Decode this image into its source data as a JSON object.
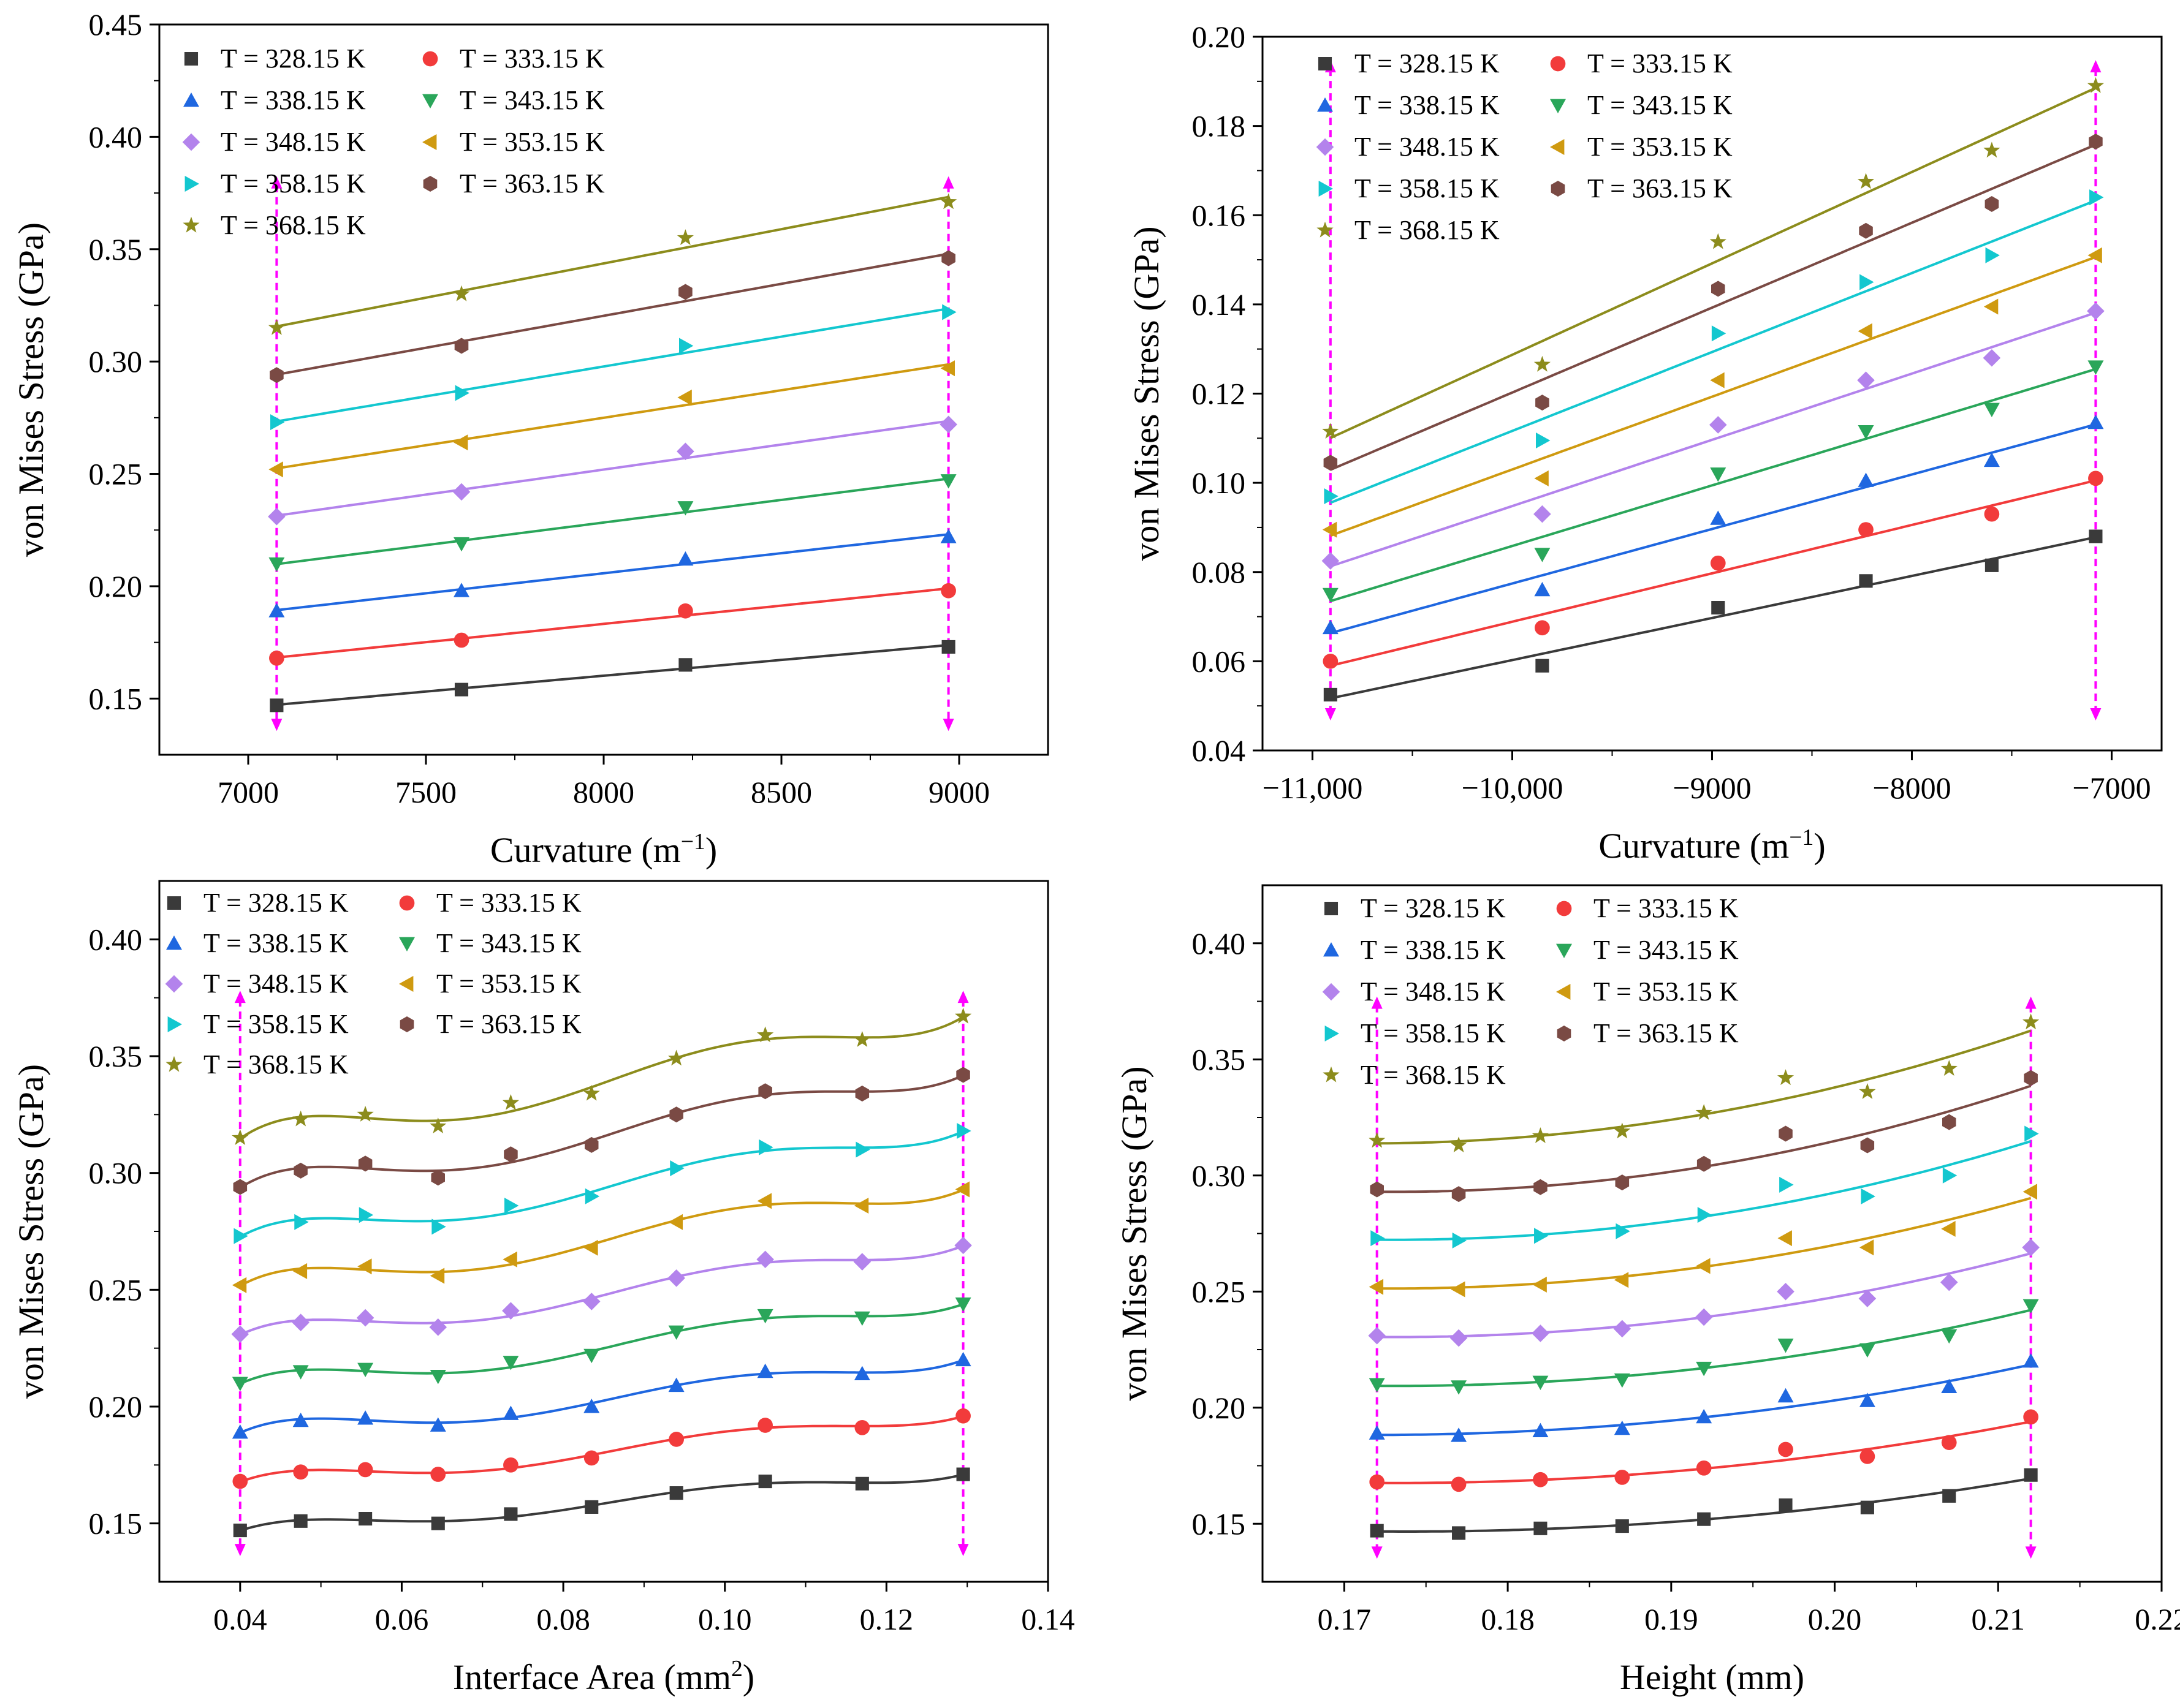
{
  "colors": {
    "328.15": "#3a3a3a",
    "333.15": "#f23b3b",
    "338.15": "#1f67e0",
    "343.15": "#2aa65a",
    "348.15": "#b383ec",
    "353.15": "#cf9a10",
    "358.15": "#13c7cf",
    "363.15": "#7a4a44",
    "368.15": "#8c8c1c",
    "bracket": "#ff00ff"
  },
  "chart_data": [
    {
      "type": "scatter",
      "fit": "linear",
      "xlabel": "Curvature (m",
      "xlabel_sup": "−1",
      "xlabel_tail": ")",
      "ylabel": "von Mises Stress (GPa)",
      "xlim": [
        6750,
        9250
      ],
      "ylim": [
        0.125,
        0.45
      ],
      "xticks": [
        7000,
        7500,
        8000,
        8500,
        9000
      ],
      "xtick_labels": [
        "7000",
        "7500",
        "8000",
        "8500",
        "9000"
      ],
      "yticks": [
        0.15,
        0.2,
        0.25,
        0.3,
        0.35,
        0.4,
        0.45
      ],
      "ytick_labels": [
        "0.15",
        "0.20",
        "0.25",
        "0.30",
        "0.35",
        "0.40",
        "0.45"
      ],
      "bracket_x": [
        7080,
        8970
      ],
      "x": [
        7080,
        7600,
        8230,
        8970
      ],
      "series": [
        {
          "name": "T = 328.15 K",
          "marker": "square",
          "values": [
            0.147,
            0.154,
            0.165,
            0.173
          ]
        },
        {
          "name": "T = 333.15 K",
          "marker": "circle",
          "values": [
            0.168,
            0.176,
            0.189,
            0.198
          ]
        },
        {
          "name": "T = 338.15 K",
          "marker": "triangle-up",
          "values": [
            0.189,
            0.198,
            0.212,
            0.222
          ]
        },
        {
          "name": "T = 343.15 K",
          "marker": "triangle-down",
          "values": [
            0.21,
            0.219,
            0.235,
            0.247
          ]
        },
        {
          "name": "T = 348.15 K",
          "marker": "diamond",
          "values": [
            0.231,
            0.242,
            0.26,
            0.272
          ]
        },
        {
          "name": "T = 353.15 K",
          "marker": "triangle-left",
          "values": [
            0.252,
            0.264,
            0.284,
            0.297
          ]
        },
        {
          "name": "T = 358.15 K",
          "marker": "triangle-right",
          "values": [
            0.273,
            0.286,
            0.307,
            0.322
          ]
        },
        {
          "name": "T = 363.15 K",
          "marker": "hexagon",
          "values": [
            0.294,
            0.307,
            0.331,
            0.346
          ]
        },
        {
          "name": "T = 368.15 K",
          "marker": "star",
          "values": [
            0.315,
            0.33,
            0.355,
            0.371
          ]
        }
      ]
    },
    {
      "type": "scatter",
      "fit": "linear",
      "xlabel": "Curvature (m",
      "xlabel_sup": "−1",
      "xlabel_tail": ")",
      "ylabel": "von Mises Stress (GPa)",
      "xlim": [
        -11250,
        -6750
      ],
      "ylim": [
        0.04,
        0.2
      ],
      "xticks": [
        -11000,
        -10000,
        -9000,
        -8000,
        -7000
      ],
      "xtick_labels": [
        "−11,000",
        "−10,000",
        "−9000",
        "−8000",
        "−7000"
      ],
      "yticks": [
        0.04,
        0.06,
        0.08,
        0.1,
        0.12,
        0.14,
        0.16,
        0.18,
        0.2
      ],
      "ytick_labels": [
        "0.04",
        "0.06",
        "0.08",
        "0.10",
        "0.12",
        "0.14",
        "0.16",
        "0.18",
        "0.20"
      ],
      "bracket_x": [
        -10910,
        -7080
      ],
      "x": [
        -10910,
        -9850,
        -8970,
        -8230,
        -7600,
        -7080
      ],
      "series": [
        {
          "name": "T = 328.15 K",
          "marker": "square",
          "values": [
            0.0525,
            0.059,
            0.072,
            0.078,
            0.0815,
            0.088
          ]
        },
        {
          "name": "T = 333.15 K",
          "marker": "circle",
          "values": [
            0.06,
            0.0675,
            0.082,
            0.0895,
            0.093,
            0.101
          ]
        },
        {
          "name": "T = 338.15 K",
          "marker": "triangle-up",
          "values": [
            0.0675,
            0.076,
            0.092,
            0.1005,
            0.105,
            0.1135
          ]
        },
        {
          "name": "T = 343.15 K",
          "marker": "triangle-down",
          "values": [
            0.075,
            0.084,
            0.102,
            0.1115,
            0.1165,
            0.126
          ]
        },
        {
          "name": "T = 348.15 K",
          "marker": "diamond",
          "values": [
            0.0825,
            0.093,
            0.113,
            0.123,
            0.128,
            0.1385
          ]
        },
        {
          "name": "T = 353.15 K",
          "marker": "triangle-left",
          "values": [
            0.0895,
            0.101,
            0.123,
            0.134,
            0.1395,
            0.151
          ]
        },
        {
          "name": "T = 358.15 K",
          "marker": "triangle-right",
          "values": [
            0.097,
            0.1095,
            0.1335,
            0.145,
            0.151,
            0.164
          ]
        },
        {
          "name": "T = 363.15 K",
          "marker": "hexagon",
          "values": [
            0.1045,
            0.118,
            0.1435,
            0.1565,
            0.1625,
            0.1765
          ]
        },
        {
          "name": "T = 368.15 K",
          "marker": "star",
          "values": [
            0.1115,
            0.1265,
            0.154,
            0.1675,
            0.1745,
            0.189
          ]
        }
      ]
    },
    {
      "type": "scatter",
      "fit": "smooth",
      "xlabel": "Interface Area (mm",
      "xlabel_sup": "2",
      "xlabel_tail": ")",
      "ylabel": "von Mises Stress (GPa)",
      "xlim": [
        0.03,
        0.14
      ],
      "ylim": [
        0.125,
        0.425
      ],
      "xticks": [
        0.04,
        0.06,
        0.08,
        0.1,
        0.12,
        0.14
      ],
      "xtick_labels": [
        "0.04",
        "0.06",
        "0.08",
        "0.10",
        "0.12",
        "0.14"
      ],
      "yticks": [
        0.15,
        0.2,
        0.25,
        0.3,
        0.35,
        0.4
      ],
      "ytick_labels": [
        "0.15",
        "0.20",
        "0.25",
        "0.30",
        "0.35",
        "0.40"
      ],
      "bracket_x": [
        0.04,
        0.1295
      ],
      "x": [
        0.04,
        0.0475,
        0.0555,
        0.0645,
        0.0735,
        0.0835,
        0.094,
        0.105,
        0.117,
        0.1295
      ],
      "series": [
        {
          "name": "T = 328.15 K",
          "marker": "square",
          "values": [
            0.147,
            0.151,
            0.152,
            0.15,
            0.154,
            0.157,
            0.163,
            0.168,
            0.167,
            0.171
          ]
        },
        {
          "name": "T = 333.15 K",
          "marker": "circle",
          "values": [
            0.168,
            0.172,
            0.173,
            0.171,
            0.175,
            0.178,
            0.186,
            0.192,
            0.191,
            0.196
          ]
        },
        {
          "name": "T = 338.15 K",
          "marker": "triangle-up",
          "values": [
            0.189,
            0.194,
            0.195,
            0.192,
            0.197,
            0.2,
            0.209,
            0.215,
            0.214,
            0.22
          ]
        },
        {
          "name": "T = 343.15 K",
          "marker": "triangle-down",
          "values": [
            0.21,
            0.215,
            0.216,
            0.213,
            0.219,
            0.222,
            0.232,
            0.239,
            0.238,
            0.244
          ]
        },
        {
          "name": "T = 348.15 K",
          "marker": "diamond",
          "values": [
            0.231,
            0.236,
            0.238,
            0.234,
            0.241,
            0.245,
            0.255,
            0.263,
            0.262,
            0.269
          ]
        },
        {
          "name": "T = 353.15 K",
          "marker": "triangle-left",
          "values": [
            0.252,
            0.258,
            0.26,
            0.256,
            0.263,
            0.268,
            0.279,
            0.288,
            0.286,
            0.293
          ]
        },
        {
          "name": "T = 358.15 K",
          "marker": "triangle-right",
          "values": [
            0.273,
            0.279,
            0.282,
            0.277,
            0.286,
            0.29,
            0.302,
            0.311,
            0.31,
            0.318
          ]
        },
        {
          "name": "T = 363.15 K",
          "marker": "hexagon",
          "values": [
            0.294,
            0.301,
            0.304,
            0.298,
            0.308,
            0.312,
            0.325,
            0.335,
            0.334,
            0.342
          ]
        },
        {
          "name": "T = 368.15 K",
          "marker": "star",
          "values": [
            0.315,
            0.323,
            0.325,
            0.32,
            0.33,
            0.334,
            0.349,
            0.359,
            0.357,
            0.367
          ]
        }
      ]
    },
    {
      "type": "scatter",
      "fit": "smooth",
      "xlabel": "Height (mm)",
      "xlabel_sup": "",
      "xlabel_tail": "",
      "ylabel": "von Mises Stress (GPa)",
      "xlim": [
        0.165,
        0.22
      ],
      "ylim": [
        0.125,
        0.425
      ],
      "xticks": [
        0.17,
        0.18,
        0.19,
        0.2,
        0.21,
        0.22
      ],
      "xtick_labels": [
        "0.17",
        "0.18",
        "0.19",
        "0.20",
        "0.21",
        "0.22"
      ],
      "yticks": [
        0.15,
        0.2,
        0.25,
        0.3,
        0.35,
        0.4
      ],
      "ytick_labels": [
        "0.15",
        "0.20",
        "0.25",
        "0.30",
        "0.35",
        "0.40"
      ],
      "bracket_x": [
        0.172,
        0.212
      ],
      "x": [
        0.172,
        0.177,
        0.182,
        0.187,
        0.192,
        0.197,
        0.202,
        0.207,
        0.212
      ],
      "series": [
        {
          "name": "T = 328.15 K",
          "marker": "square",
          "values": [
            0.147,
            0.146,
            0.148,
            0.149,
            0.152,
            0.158,
            0.157,
            0.162,
            0.171
          ]
        },
        {
          "name": "T = 333.15 K",
          "marker": "circle",
          "values": [
            0.168,
            0.167,
            0.169,
            0.17,
            0.174,
            0.182,
            0.179,
            0.185,
            0.196
          ]
        },
        {
          "name": "T = 338.15 K",
          "marker": "triangle-up",
          "values": [
            0.189,
            0.188,
            0.19,
            0.191,
            0.196,
            0.205,
            0.203,
            0.209,
            0.22
          ]
        },
        {
          "name": "T = 343.15 K",
          "marker": "triangle-down",
          "values": [
            0.21,
            0.209,
            0.211,
            0.212,
            0.217,
            0.227,
            0.225,
            0.231,
            0.244
          ]
        },
        {
          "name": "T = 348.15 K",
          "marker": "diamond",
          "values": [
            0.231,
            0.23,
            0.232,
            0.234,
            0.239,
            0.25,
            0.247,
            0.254,
            0.269
          ]
        },
        {
          "name": "T = 353.15 K",
          "marker": "triangle-left",
          "values": [
            0.252,
            0.251,
            0.253,
            0.255,
            0.261,
            0.273,
            0.269,
            0.277,
            0.293
          ]
        },
        {
          "name": "T = 358.15 K",
          "marker": "triangle-right",
          "values": [
            0.273,
            0.272,
            0.274,
            0.276,
            0.283,
            0.296,
            0.291,
            0.3,
            0.318
          ]
        },
        {
          "name": "T = 363.15 K",
          "marker": "hexagon",
          "values": [
            0.294,
            0.292,
            0.295,
            0.297,
            0.305,
            0.318,
            0.313,
            0.323,
            0.342
          ]
        },
        {
          "name": "T = 368.15 K",
          "marker": "star",
          "values": [
            0.315,
            0.313,
            0.317,
            0.319,
            0.327,
            0.342,
            0.336,
            0.346,
            0.366
          ]
        }
      ]
    }
  ]
}
